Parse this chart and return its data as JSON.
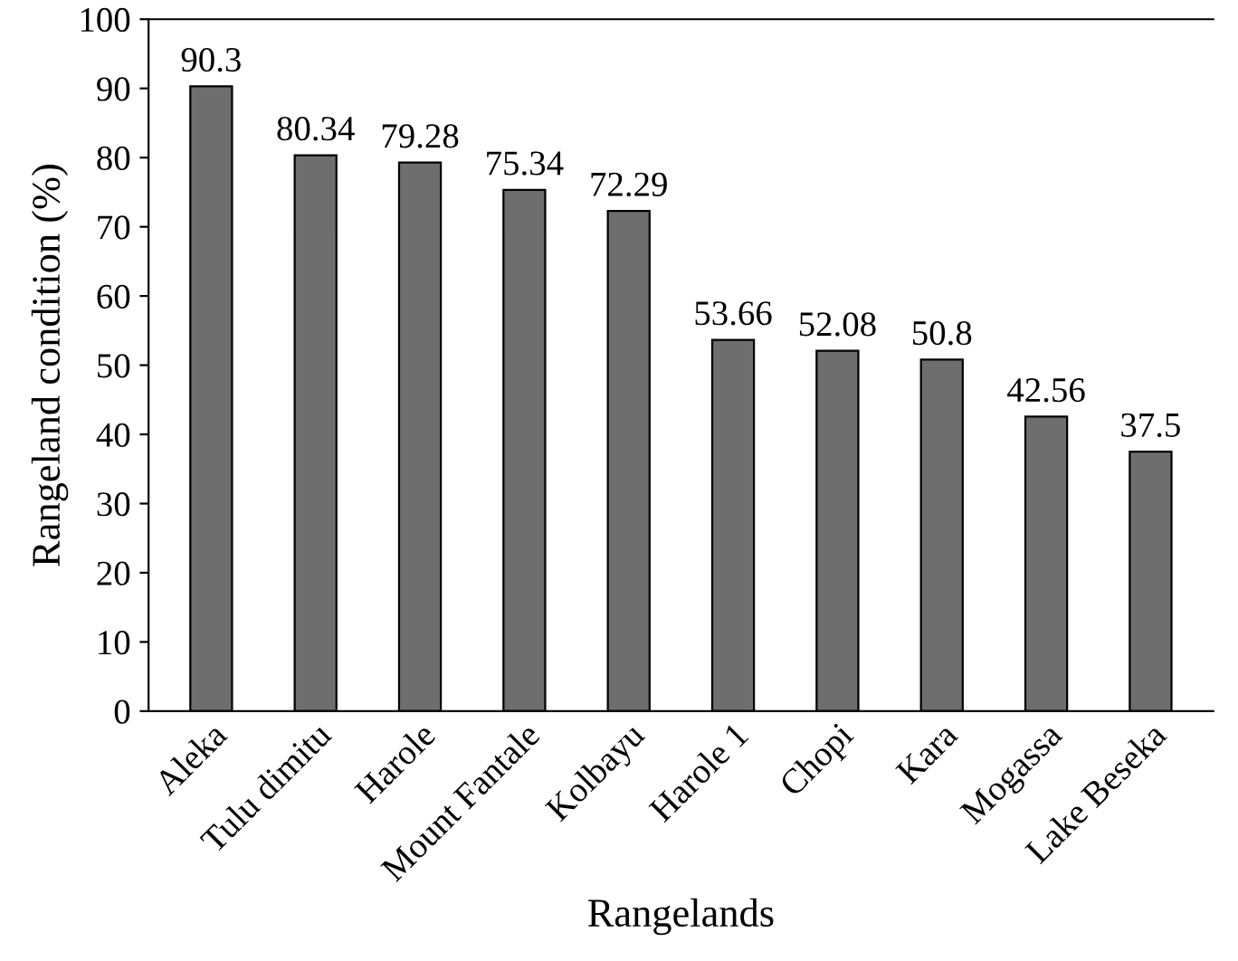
{
  "chart_data": {
    "type": "bar",
    "xlabel": "Rangelands",
    "ylabel": "Rangeland condition (%)",
    "categories": [
      "Aleka",
      "Tulu dimitu",
      "Harole",
      "Mount Fantale",
      "Kolbayu",
      "Harole 1",
      "Chopi",
      "Kara",
      "Mogassa",
      "Lake Beseka"
    ],
    "values": [
      90.3,
      80.34,
      79.28,
      75.34,
      72.29,
      53.66,
      52.08,
      50.8,
      42.56,
      37.5
    ],
    "color": "#6e6e6e",
    "ylim": [
      0,
      100
    ],
    "yticks": [
      0,
      10,
      20,
      30,
      40,
      50,
      60,
      70,
      80,
      90,
      100
    ],
    "data_labels": true,
    "grid": false,
    "legend": false
  }
}
